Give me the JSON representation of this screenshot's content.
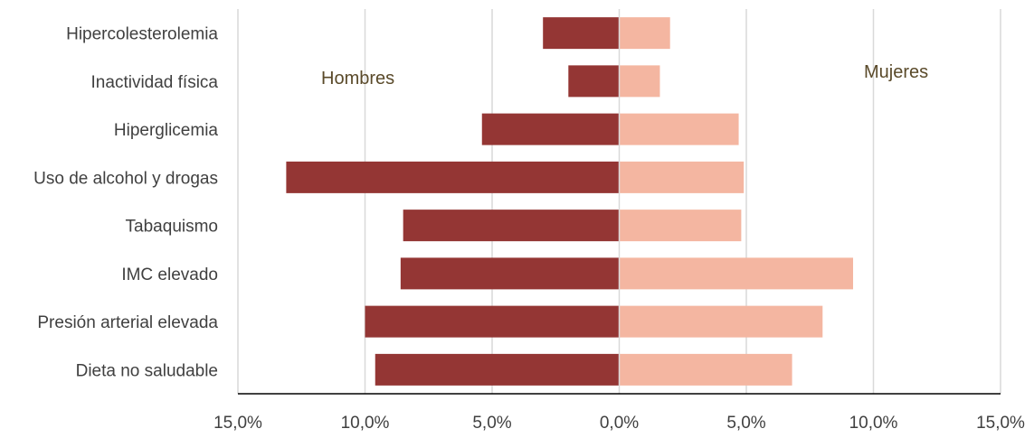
{
  "chart_data": {
    "type": "bar",
    "orientation": "horizontal-diverging",
    "categories": [
      "Hipercolesterolemia",
      "Inactividad física",
      "Hiperglicemia",
      "Uso de alcohol y drogas",
      "Tabaquismo",
      "IMC elevado",
      "Presión arterial elevada",
      "Dieta no saludable"
    ],
    "series": [
      {
        "name": "Hombres",
        "color": "#943634",
        "direction": "left",
        "values": [
          3.0,
          2.0,
          5.4,
          13.1,
          8.5,
          8.6,
          10.0,
          9.6
        ]
      },
      {
        "name": "Mujeres",
        "color": "#f4b6a1",
        "direction": "right",
        "values": [
          2.0,
          1.6,
          4.7,
          4.9,
          4.8,
          9.2,
          8.0,
          6.8
        ]
      }
    ],
    "xlim": [
      -15,
      15
    ],
    "ticks": [
      -15,
      -10,
      -5,
      0,
      5,
      10,
      15
    ],
    "tick_labels": [
      "15,0%",
      "10,0%",
      "5,0%",
      "0,0%",
      "5,0%",
      "10,0%",
      "15,0%"
    ],
    "grid": true,
    "title": "",
    "xlabel": "",
    "ylabel": ""
  }
}
